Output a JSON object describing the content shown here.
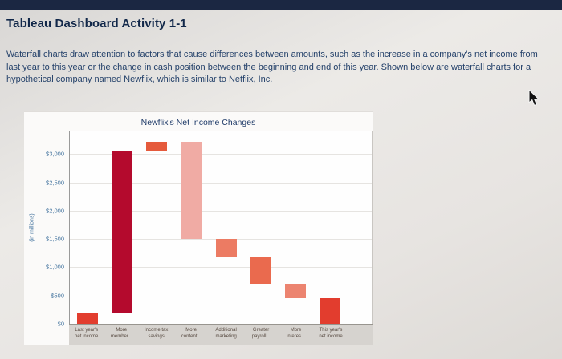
{
  "page": {
    "title": "Tableau Dashboard Activity 1-1",
    "intro": "Waterfall charts draw attention to factors that cause differences between amounts, such as the increase in a company's net income from last year to this year or the change in cash position between the beginning and end of this year. Shown below are waterfall charts for a hypothetical company named Newflix, which is similar to Netflix, Inc."
  },
  "chart_data": {
    "type": "bar",
    "subtype": "waterfall",
    "title": "Newflix's Net Income Changes",
    "ylabel": "(in millions)",
    "xlabel": "",
    "ylim": [
      0,
      3400
    ],
    "grid": "horizontal",
    "legend": "none",
    "yticks": [
      {
        "label": "$3,000",
        "value": 3000
      },
      {
        "label": "$2,500",
        "value": 2500
      },
      {
        "label": "$2,000",
        "value": 2000
      },
      {
        "label": "$1,500",
        "value": 1500
      },
      {
        "label": "$1,000",
        "value": 1000
      },
      {
        "label": "$500",
        "value": 500
      },
      {
        "label": "$0",
        "value": 0
      }
    ],
    "bars": [
      {
        "id": "last-years-net-income",
        "label": "Last year's net income",
        "label_lines": [
          "Last year's",
          "net income"
        ],
        "start": 0,
        "end": 190,
        "change": 190,
        "color": "#e23d2e"
      },
      {
        "id": "more-members",
        "label": "More member...",
        "label_lines": [
          "More",
          "member..."
        ],
        "start": 190,
        "end": 3050,
        "change": 2860,
        "color": "#b40a2d"
      },
      {
        "id": "income-tax-savings",
        "label": "Income tax savings",
        "label_lines": [
          "Income tax",
          "savings"
        ],
        "start": 3050,
        "end": 3220,
        "change": 170,
        "color": "#e55a3c"
      },
      {
        "id": "more-content",
        "label": "More content...",
        "label_lines": [
          "More",
          "content..."
        ],
        "start": 3220,
        "end": 1500,
        "change": -1720,
        "color": "#f0aba4"
      },
      {
        "id": "additional-marketing",
        "label": "Additional marketing",
        "label_lines": [
          "Additional",
          "marketing"
        ],
        "start": 1500,
        "end": 1180,
        "change": -320,
        "color": "#ec7b63"
      },
      {
        "id": "greater-payroll",
        "label": "Greater payroll...",
        "label_lines": [
          "Greater",
          "payroll..."
        ],
        "start": 1180,
        "end": 700,
        "change": -480,
        "color": "#ea6a4e"
      },
      {
        "id": "more-interest",
        "label": "More interes...",
        "label_lines": [
          "More",
          "interes..."
        ],
        "start": 700,
        "end": 460,
        "change": -240,
        "color": "#ec8470"
      },
      {
        "id": "this-years-net-income",
        "label": "This year's net income",
        "label_lines": [
          "This year's",
          "net income"
        ],
        "start": 0,
        "end": 460,
        "change": 460,
        "color": "#e23d2e"
      }
    ]
  }
}
